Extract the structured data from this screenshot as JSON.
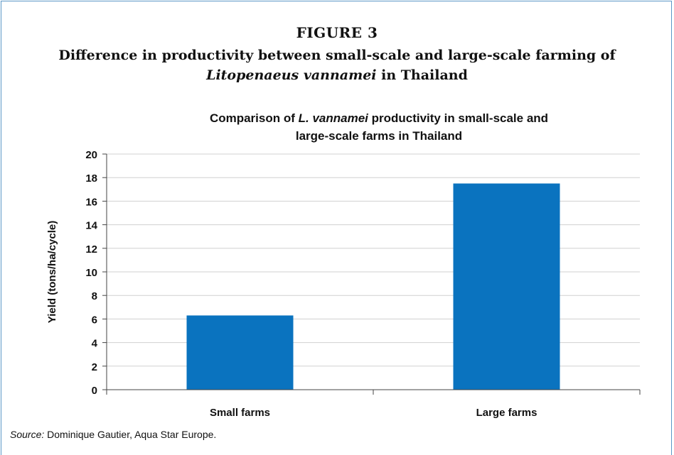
{
  "figure": {
    "number": "FIGURE 3",
    "title_part1": "Difference in productivity between small-scale and large-scale farming of ",
    "title_italic": "Litopenaeus vannamei",
    "title_part2": " in Thailand"
  },
  "source": {
    "label": "Source:",
    "text": " Dominique Gautier, Aqua Star Europe."
  },
  "colors": {
    "bar": "#0a73bf",
    "frame": "#5b97c7",
    "grid": "#d0d0d0",
    "axis": "#444444"
  },
  "chart_data": {
    "type": "bar",
    "title_line1_pre": "Comparison of ",
    "title_line1_italic": "L. vannamei",
    "title_line1_post": " productivity in small-scale and",
    "title_line2": "large-scale farms in Thailand",
    "categories": [
      "Small farms",
      "Large farms"
    ],
    "values": [
      6.3,
      17.5
    ],
    "ylabel": "Yield (tons/ha/cycle)",
    "xlabel": "",
    "ylim": [
      0,
      20
    ],
    "yticks": [
      "0",
      "2",
      "4",
      "6",
      "8",
      "10",
      "12",
      "14",
      "16",
      "18",
      "20"
    ],
    "grid": true,
    "legend": "none"
  }
}
